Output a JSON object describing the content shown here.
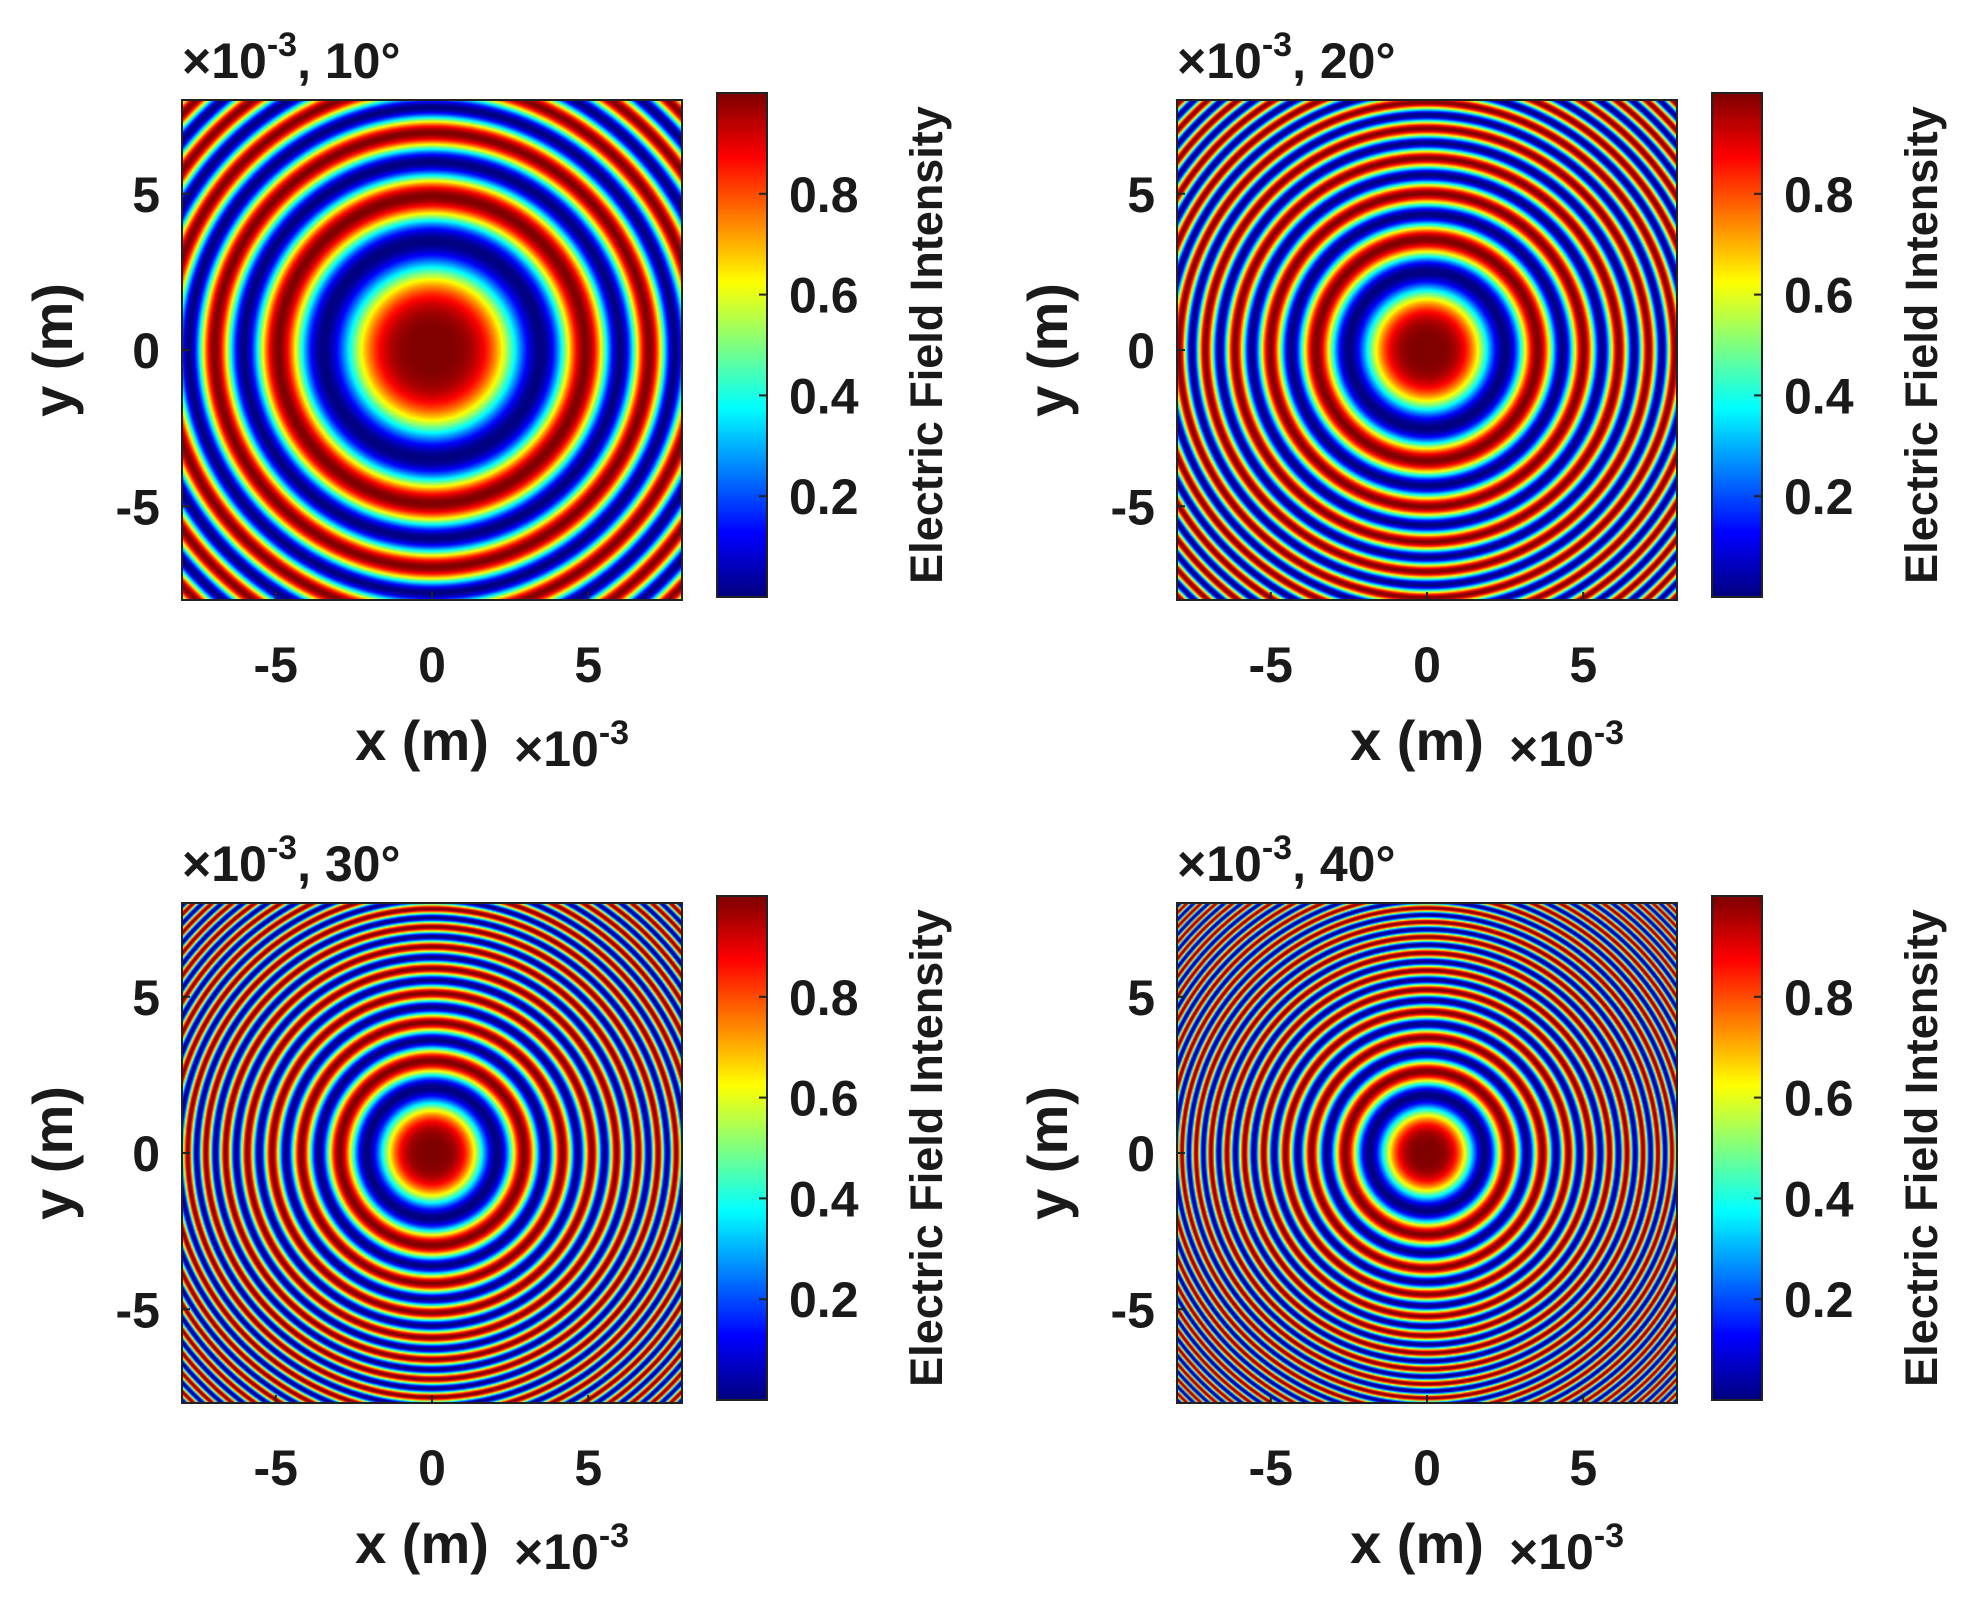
{
  "chart_data": [
    {
      "type": "heatmap",
      "id": "panel-10deg",
      "title": "10°",
      "angle_deg": 10,
      "exponent_label": "×10",
      "exponent_power": "-3",
      "xlabel": "x (m)",
      "ylabel": "y (m)",
      "xlim": [
        -8,
        8
      ],
      "ylim": [
        -8,
        8
      ],
      "x_unit_scale": "1e-3",
      "xticks": [
        -5,
        0,
        5
      ],
      "yticks": [
        5,
        0,
        -5
      ],
      "xtick_labels": [
        "-5",
        "0",
        "5"
      ],
      "ytick_labels": [
        "5",
        "0",
        "-5"
      ],
      "colorbar": {
        "label": "Electric Field Intensity",
        "range": [
          0,
          1
        ],
        "colormap": "jet",
        "ticks": [
          0.8,
          0.6,
          0.4,
          0.2
        ],
        "tick_labels": [
          "0.8",
          "0.6",
          "0.4",
          "0.2"
        ]
      },
      "pattern": "concentric circular interference rings, peak intensity 1 at centre",
      "ring_spacing_factor": 0.26
    },
    {
      "type": "heatmap",
      "id": "panel-20deg",
      "title": "20°",
      "angle_deg": 20,
      "exponent_label": "×10",
      "exponent_power": "-3",
      "xlabel": "x (m)",
      "ylabel": "y (m)",
      "xlim": [
        -8,
        8
      ],
      "ylim": [
        -8,
        8
      ],
      "x_unit_scale": "1e-3",
      "xticks": [
        -5,
        0,
        5
      ],
      "yticks": [
        5,
        0,
        -5
      ],
      "xtick_labels": [
        "-5",
        "0",
        "5"
      ],
      "ytick_labels": [
        "5",
        "0",
        "-5"
      ],
      "colorbar": {
        "label": "Electric Field Intensity",
        "range": [
          0,
          1
        ],
        "colormap": "jet",
        "ticks": [
          0.8,
          0.6,
          0.4,
          0.2
        ],
        "tick_labels": [
          "0.8",
          "0.6",
          "0.4",
          "0.2"
        ]
      },
      "pattern": "concentric circular interference rings, peak intensity 1 at centre",
      "ring_spacing_factor": 0.5
    },
    {
      "type": "heatmap",
      "id": "panel-30deg",
      "title": "30°",
      "angle_deg": 30,
      "exponent_label": "×10",
      "exponent_power": "-3",
      "xlabel": "x (m)",
      "ylabel": "y (m)",
      "xlim": [
        -8,
        8
      ],
      "ylim": [
        -8,
        8
      ],
      "x_unit_scale": "1e-3",
      "xticks": [
        -5,
        0,
        5
      ],
      "yticks": [
        5,
        0,
        -5
      ],
      "xtick_labels": [
        "-5",
        "0",
        "5"
      ],
      "ytick_labels": [
        "5",
        "0",
        "-5"
      ],
      "colorbar": {
        "label": "Electric Field Intensity",
        "range": [
          0,
          1
        ],
        "colormap": "jet",
        "ticks": [
          0.8,
          0.6,
          0.4,
          0.2
        ],
        "tick_labels": [
          "0.8",
          "0.6",
          "0.4",
          "0.2"
        ]
      },
      "pattern": "concentric circular interference rings, peak intensity 1 at centre",
      "ring_spacing_factor": 0.72
    },
    {
      "type": "heatmap",
      "id": "panel-40deg",
      "title": "40°",
      "angle_deg": 40,
      "exponent_label": "×10",
      "exponent_power": "-3",
      "xlabel": "x (m)",
      "ylabel": "y (m)",
      "xlim": [
        -8,
        8
      ],
      "ylim": [
        -8,
        8
      ],
      "x_unit_scale": "1e-3",
      "xticks": [
        -5,
        0,
        5
      ],
      "yticks": [
        5,
        0,
        -5
      ],
      "xtick_labels": [
        "-5",
        "0",
        "5"
      ],
      "ytick_labels": [
        "5",
        "0",
        "-5"
      ],
      "colorbar": {
        "label": "Electric Field Intensity",
        "range": [
          0,
          1
        ],
        "colormap": "jet",
        "ticks": [
          0.8,
          0.6,
          0.4,
          0.2
        ],
        "tick_labels": [
          "0.8",
          "0.6",
          "0.4",
          "0.2"
        ]
      },
      "pattern": "concentric circular interference rings, peak intensity 1 at centre",
      "ring_spacing_factor": 0.92
    }
  ]
}
